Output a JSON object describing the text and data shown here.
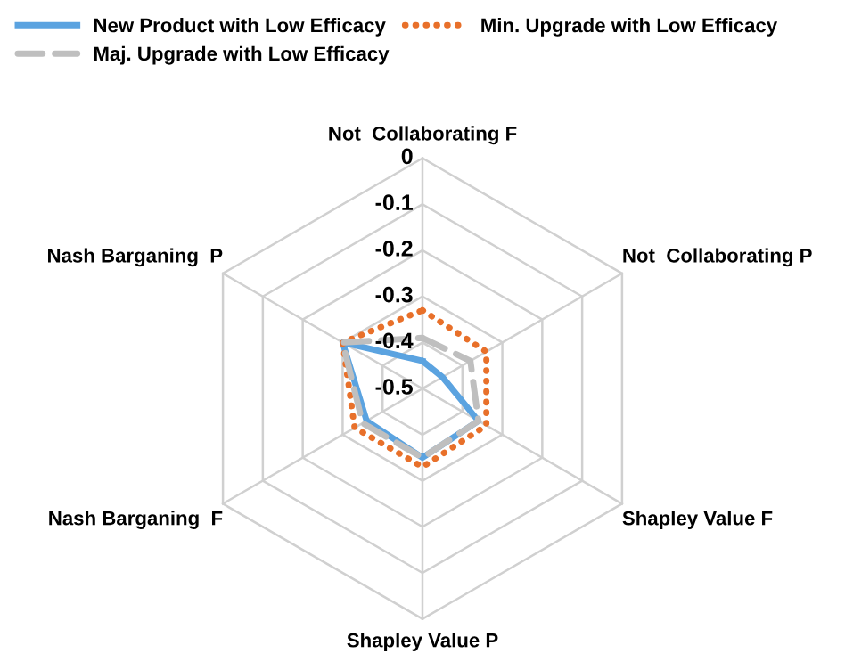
{
  "chart_data": {
    "type": "radar",
    "categories": [
      "Not  Collaborating F",
      "Not  Collaborating P",
      "Shapley Value F",
      "Shapley Value P",
      "Nash Barganing  F",
      "Nash Barganing  P"
    ],
    "series": [
      {
        "name": "New Product with Low Efficacy",
        "color": "#5ba3e0",
        "line_style": "solid",
        "values": [
          -0.44,
          -0.45,
          -0.36,
          -0.35,
          -0.36,
          -0.3
        ]
      },
      {
        "name": "Min. Upgrade with Low Efficacy",
        "color": "#e8702a",
        "line_style": "dotted",
        "values": [
          -0.33,
          -0.34,
          -0.34,
          -0.33,
          -0.33,
          -0.3
        ]
      },
      {
        "name": "Maj. Upgrade with Low Efficacy",
        "color": "#bfbfbf",
        "line_style": "dashed",
        "values": [
          -0.39,
          -0.38,
          -0.36,
          -0.35,
          -0.35,
          -0.3
        ]
      }
    ],
    "ylim": [
      -0.5,
      0
    ],
    "yticks": [
      0,
      -0.1,
      -0.2,
      -0.3,
      -0.4,
      -0.5
    ],
    "grid": true,
    "legend": "top",
    "marker": "none"
  }
}
